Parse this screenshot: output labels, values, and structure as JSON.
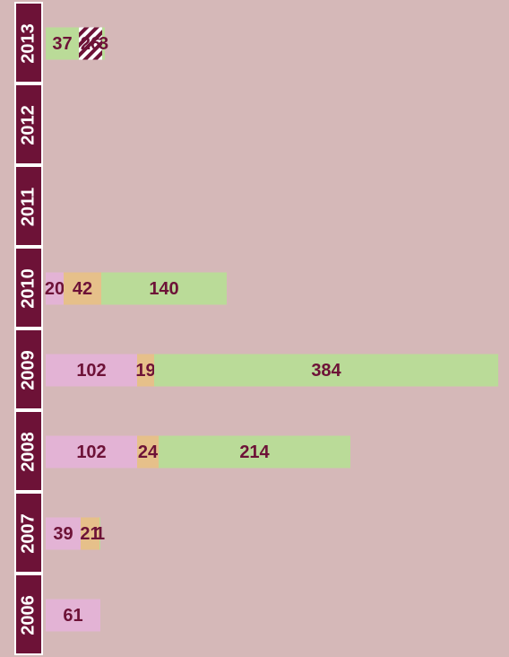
{
  "chart_data": {
    "type": "stacked-bar",
    "bars": [
      {
        "label": "2013",
        "segments": [
          {
            "value": 37,
            "color": "#badb98"
          },
          {
            "value": 26,
            "color": "#ffffff",
            "hatch": true
          },
          {
            "value": 3,
            "color": "#badb98"
          }
        ]
      },
      {
        "label": "2012",
        "segments": []
      },
      {
        "label": "2011",
        "segments": []
      },
      {
        "label": "2010",
        "segments": [
          {
            "value": 20,
            "color": "#e3b3d5"
          },
          {
            "value": 42,
            "color": "#e6c08a"
          },
          {
            "value": 140,
            "color": "#badb98"
          }
        ]
      },
      {
        "label": "2009",
        "segments": [
          {
            "value": 102,
            "color": "#e3b3d5"
          },
          {
            "value": 19,
            "color": "#e6c08a"
          },
          {
            "value": 384,
            "color": "#badb98"
          }
        ]
      },
      {
        "label": "2008",
        "segments": [
          {
            "value": 102,
            "color": "#e3b3d5"
          },
          {
            "value": 24,
            "color": "#e6c08a"
          },
          {
            "value": 214,
            "color": "#badb98"
          }
        ]
      },
      {
        "label": "2007",
        "segments": [
          {
            "value": 39,
            "color": "#e3b3d5"
          },
          {
            "value": 21,
            "color": "#e6c08a"
          },
          {
            "value": 1,
            "color": "#badb98"
          }
        ]
      },
      {
        "label": "2006",
        "segments": [
          {
            "value": 61,
            "color": "#e3b3d5"
          }
        ]
      }
    ]
  }
}
